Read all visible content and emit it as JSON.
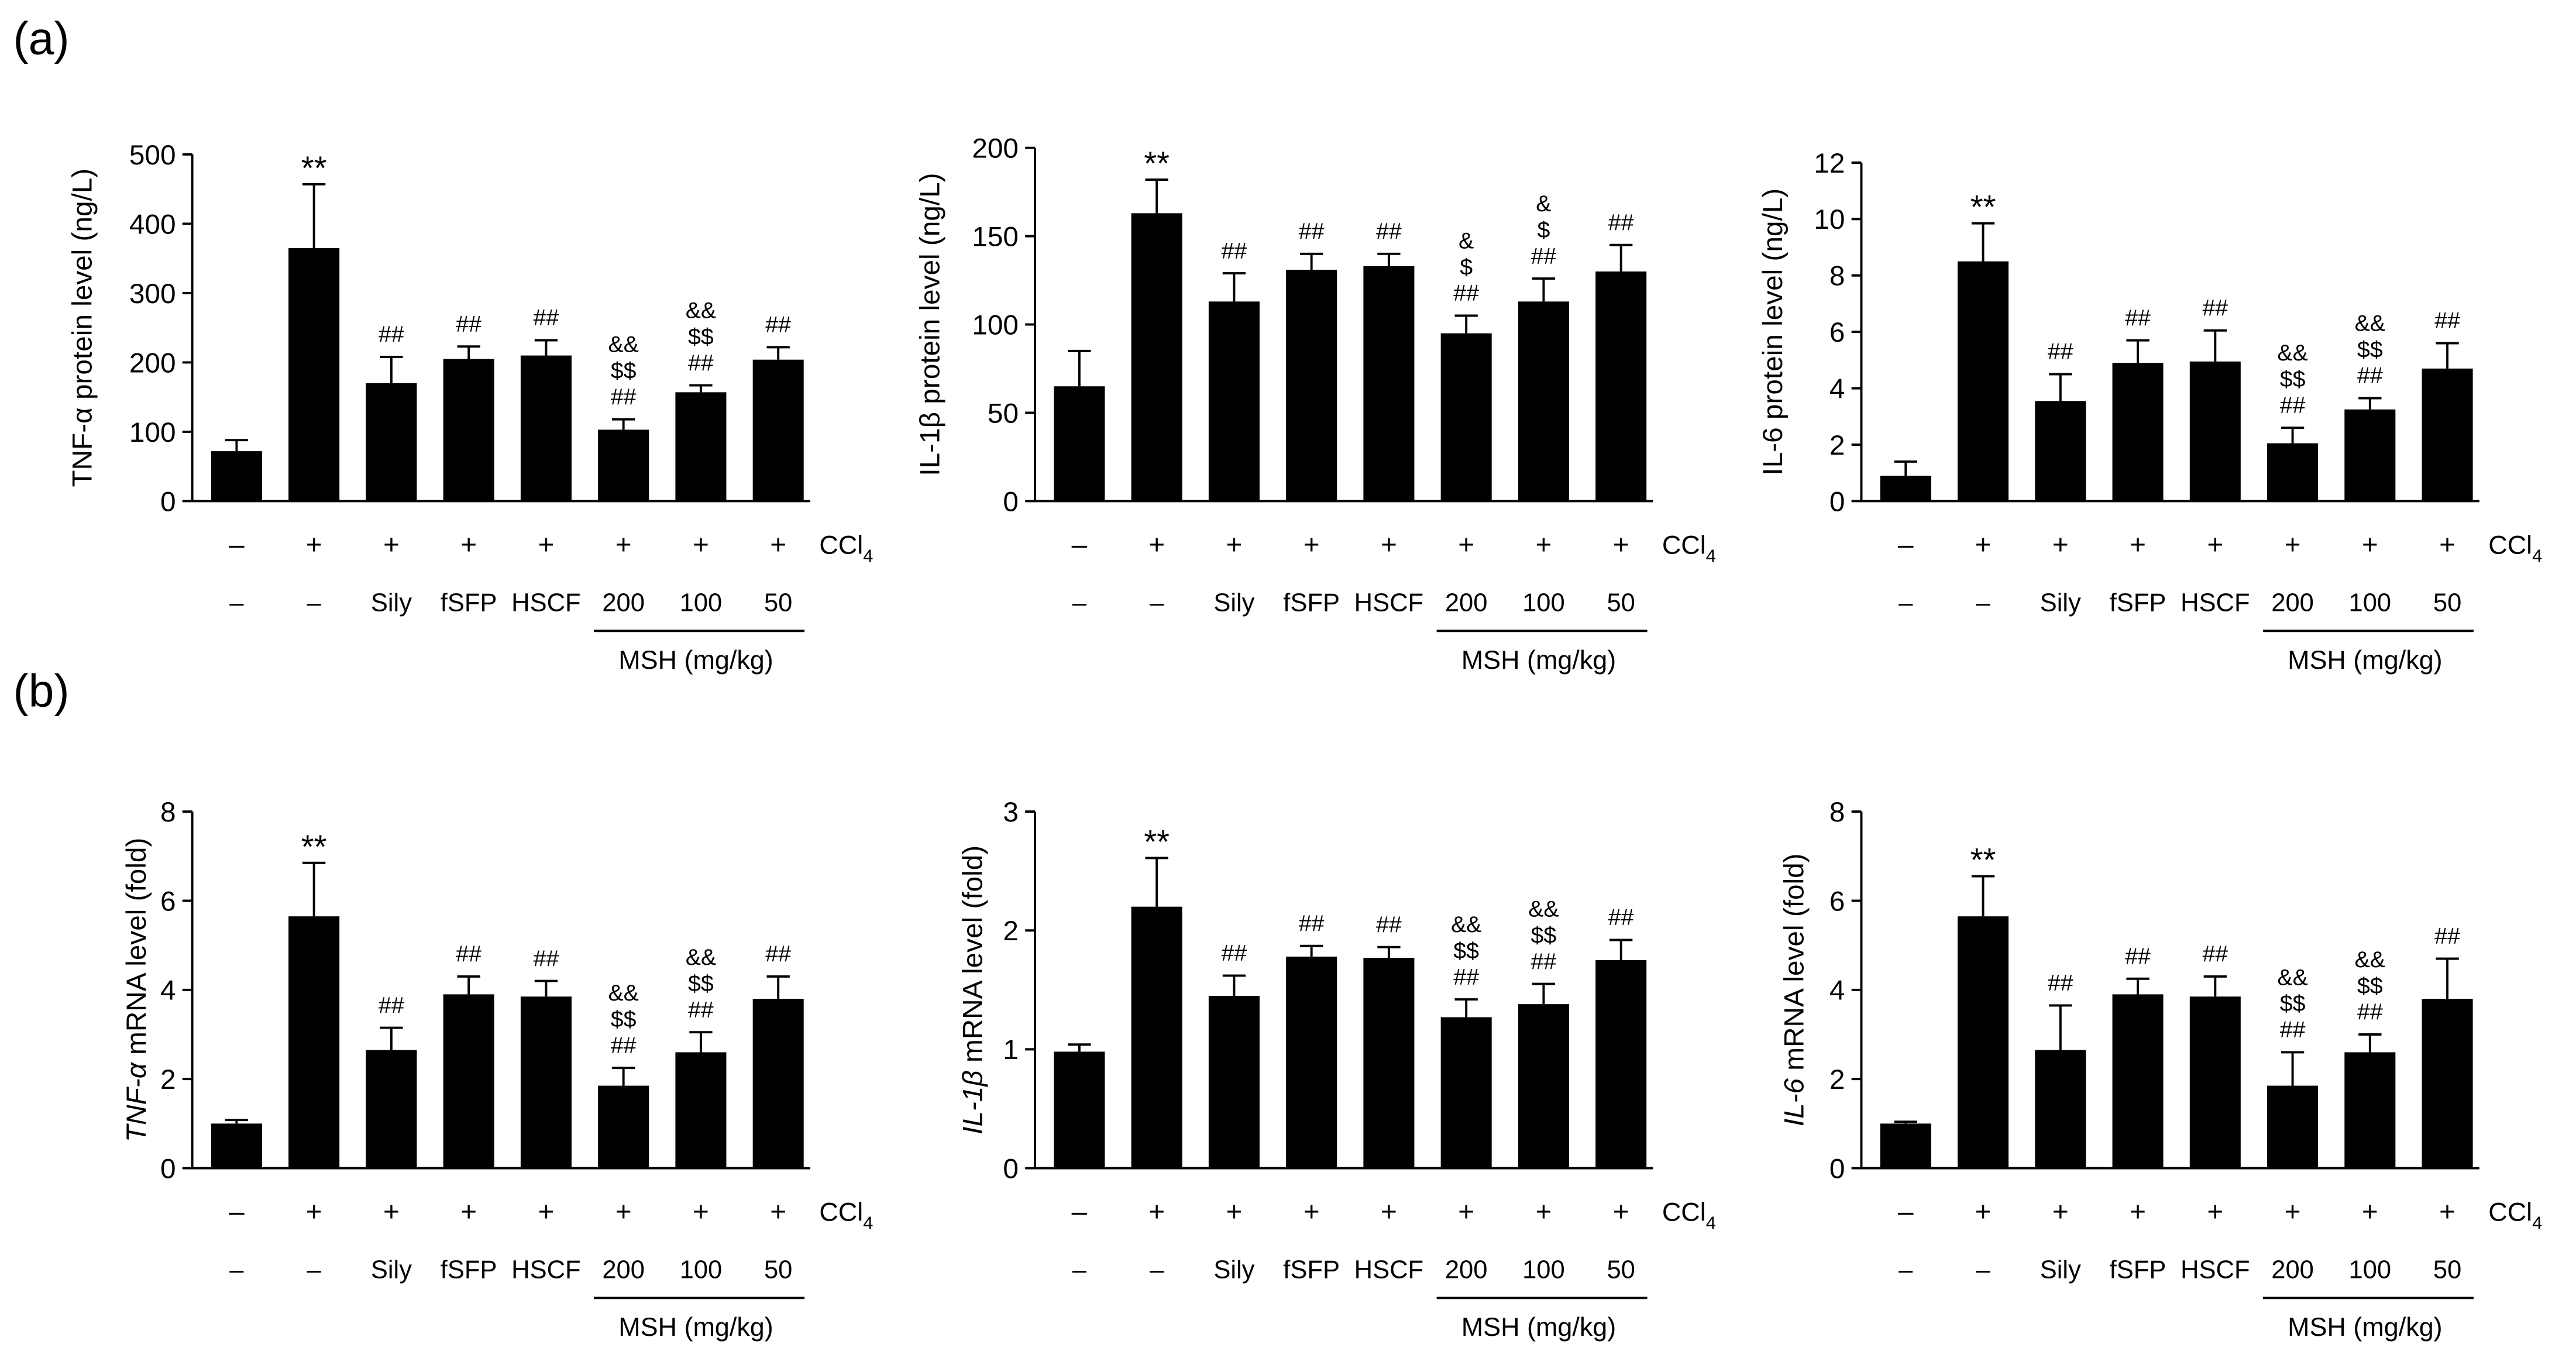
{
  "panels": [
    {
      "label": "(a)"
    },
    {
      "label": "(b)"
    }
  ],
  "chart_data": [
    {
      "type": "bar",
      "ylabel": [
        {
          "text": "TNF-α protein level (ng/L)",
          "italic": false
        }
      ],
      "ylim": [
        0,
        500
      ],
      "yticks": [
        0,
        100,
        200,
        300,
        400,
        500
      ],
      "ccl4_label": {
        "main": "CCl",
        "sub": "4"
      },
      "ccl4": [
        "–",
        "+",
        "+",
        "+",
        "+",
        "+",
        "+",
        "+"
      ],
      "categories": [
        "–",
        "–",
        "Sily",
        "fSFP",
        "HSCF",
        "200",
        "100",
        "50"
      ],
      "group": {
        "label": "MSH (mg/kg)",
        "from": 5,
        "to": 7
      },
      "values": [
        72,
        365,
        170,
        205,
        210,
        103,
        157,
        204
      ],
      "errors": [
        16,
        92,
        38,
        18,
        22,
        15,
        10,
        18
      ],
      "annotations": [
        [],
        [
          "**"
        ],
        [
          "##"
        ],
        [
          "##"
        ],
        [
          "##"
        ],
        [
          "&&",
          "$$",
          "##"
        ],
        [
          "&&",
          "$$",
          "##"
        ],
        [
          "##"
        ]
      ]
    },
    {
      "type": "bar",
      "ylabel": [
        {
          "text": "IL-1β protein level (ng/L)",
          "italic": false
        }
      ],
      "ylim": [
        0,
        200
      ],
      "yticks": [
        0,
        50,
        100,
        150,
        200
      ],
      "ccl4_label": {
        "main": "CCl",
        "sub": "4"
      },
      "ccl4": [
        "–",
        "+",
        "+",
        "+",
        "+",
        "+",
        "+",
        "+"
      ],
      "categories": [
        "–",
        "–",
        "Sily",
        "fSFP",
        "HSCF",
        "200",
        "100",
        "50"
      ],
      "group": {
        "label": "MSH (mg/kg)",
        "from": 5,
        "to": 7
      },
      "values": [
        65,
        163,
        113,
        131,
        133,
        95,
        113,
        130
      ],
      "errors": [
        20,
        19,
        16,
        9,
        7,
        10,
        13,
        15
      ],
      "annotations": [
        [],
        [
          "**"
        ],
        [
          "##"
        ],
        [
          "##"
        ],
        [
          "##"
        ],
        [
          "&",
          "$",
          "##"
        ],
        [
          "&",
          "$",
          "##"
        ],
        [
          "##"
        ]
      ]
    },
    {
      "type": "bar",
      "ylabel": [
        {
          "text": "IL-6 protein level (ng/L)",
          "italic": false
        }
      ],
      "ylim": [
        0,
        12
      ],
      "yticks": [
        0,
        2,
        4,
        6,
        8,
        10,
        12
      ],
      "ccl4_label": {
        "main": "CCl",
        "sub": "4"
      },
      "ccl4": [
        "–",
        "+",
        "+",
        "+",
        "+",
        "+",
        "+",
        "+"
      ],
      "categories": [
        "–",
        "–",
        "Sily",
        "fSFP",
        "HSCF",
        "200",
        "100",
        "50"
      ],
      "group": {
        "label": "MSH (mg/kg)",
        "from": 5,
        "to": 7
      },
      "values": [
        0.9,
        8.5,
        3.55,
        4.9,
        4.95,
        2.05,
        3.25,
        4.7
      ],
      "errors": [
        0.5,
        1.35,
        0.95,
        0.8,
        1.1,
        0.55,
        0.4,
        0.9
      ],
      "annotations": [
        [],
        [
          "**"
        ],
        [
          "##"
        ],
        [
          "##"
        ],
        [
          "##"
        ],
        [
          "&&",
          "$$",
          "##"
        ],
        [
          "&&",
          "$$",
          "##"
        ],
        [
          "##"
        ]
      ]
    },
    {
      "type": "bar",
      "ylabel": [
        {
          "text": "TNF-α",
          "italic": true
        },
        {
          "text": " mRNA level (fold)",
          "italic": false
        }
      ],
      "ylim": [
        0,
        8
      ],
      "yticks": [
        0,
        2,
        4,
        6,
        8
      ],
      "ccl4_label": {
        "main": "CCl",
        "sub": "4"
      },
      "ccl4": [
        "–",
        "+",
        "+",
        "+",
        "+",
        "+",
        "+",
        "+"
      ],
      "categories": [
        "–",
        "–",
        "Sily",
        "fSFP",
        "HSCF",
        "200",
        "100",
        "50"
      ],
      "group": {
        "label": "MSH (mg/kg)",
        "from": 5,
        "to": 7
      },
      "values": [
        1.0,
        5.65,
        2.65,
        3.9,
        3.85,
        1.85,
        2.6,
        3.8
      ],
      "errors": [
        0.08,
        1.2,
        0.5,
        0.4,
        0.35,
        0.4,
        0.45,
        0.5
      ],
      "annotations": [
        [],
        [
          "**"
        ],
        [
          "##"
        ],
        [
          "##"
        ],
        [
          "##"
        ],
        [
          "&&",
          "$$",
          "##"
        ],
        [
          "&&",
          "$$",
          "##"
        ],
        [
          "##"
        ]
      ]
    },
    {
      "type": "bar",
      "ylabel": [
        {
          "text": "IL-1β",
          "italic": true
        },
        {
          "text": " mRNA level (fold)",
          "italic": false
        }
      ],
      "ylim": [
        0,
        3
      ],
      "yticks": [
        0,
        1,
        2,
        3
      ],
      "ccl4_label": {
        "main": "CCl",
        "sub": "4"
      },
      "ccl4": [
        "–",
        "+",
        "+",
        "+",
        "+",
        "+",
        "+",
        "+"
      ],
      "categories": [
        "–",
        "–",
        "Sily",
        "fSFP",
        "HSCF",
        "200",
        "100",
        "50"
      ],
      "group": {
        "label": "MSH (mg/kg)",
        "from": 5,
        "to": 7
      },
      "values": [
        0.98,
        2.2,
        1.45,
        1.78,
        1.77,
        1.27,
        1.38,
        1.75
      ],
      "errors": [
        0.06,
        0.41,
        0.17,
        0.09,
        0.09,
        0.15,
        0.17,
        0.17
      ],
      "annotations": [
        [],
        [
          "**"
        ],
        [
          "##"
        ],
        [
          "##"
        ],
        [
          "##"
        ],
        [
          "&&",
          "$$",
          "##"
        ],
        [
          "&&",
          "$$",
          "##"
        ],
        [
          "##"
        ]
      ]
    },
    {
      "type": "bar",
      "ylabel": [
        {
          "text": "IL-6",
          "italic": true
        },
        {
          "text": " mRNA level (fold)",
          "italic": false
        }
      ],
      "ylim": [
        0,
        8
      ],
      "yticks": [
        0,
        2,
        4,
        6,
        8
      ],
      "ccl4_label": {
        "main": "CCl",
        "sub": "4"
      },
      "ccl4": [
        "–",
        "+",
        "+",
        "+",
        "+",
        "+",
        "+",
        "+"
      ],
      "categories": [
        "–",
        "–",
        "Sily",
        "fSFP",
        "HSCF",
        "200",
        "100",
        "50"
      ],
      "group": {
        "label": "MSH (mg/kg)",
        "from": 5,
        "to": 7
      },
      "values": [
        1.0,
        5.65,
        2.65,
        3.9,
        3.85,
        1.85,
        2.6,
        3.8
      ],
      "errors": [
        0.04,
        0.9,
        1.0,
        0.35,
        0.45,
        0.75,
        0.4,
        0.9
      ],
      "annotations": [
        [],
        [
          "**"
        ],
        [
          "##"
        ],
        [
          "##"
        ],
        [
          "##"
        ],
        [
          "&&",
          "$$",
          "##"
        ],
        [
          "&&",
          "$$",
          "##"
        ],
        [
          "##"
        ]
      ]
    }
  ]
}
